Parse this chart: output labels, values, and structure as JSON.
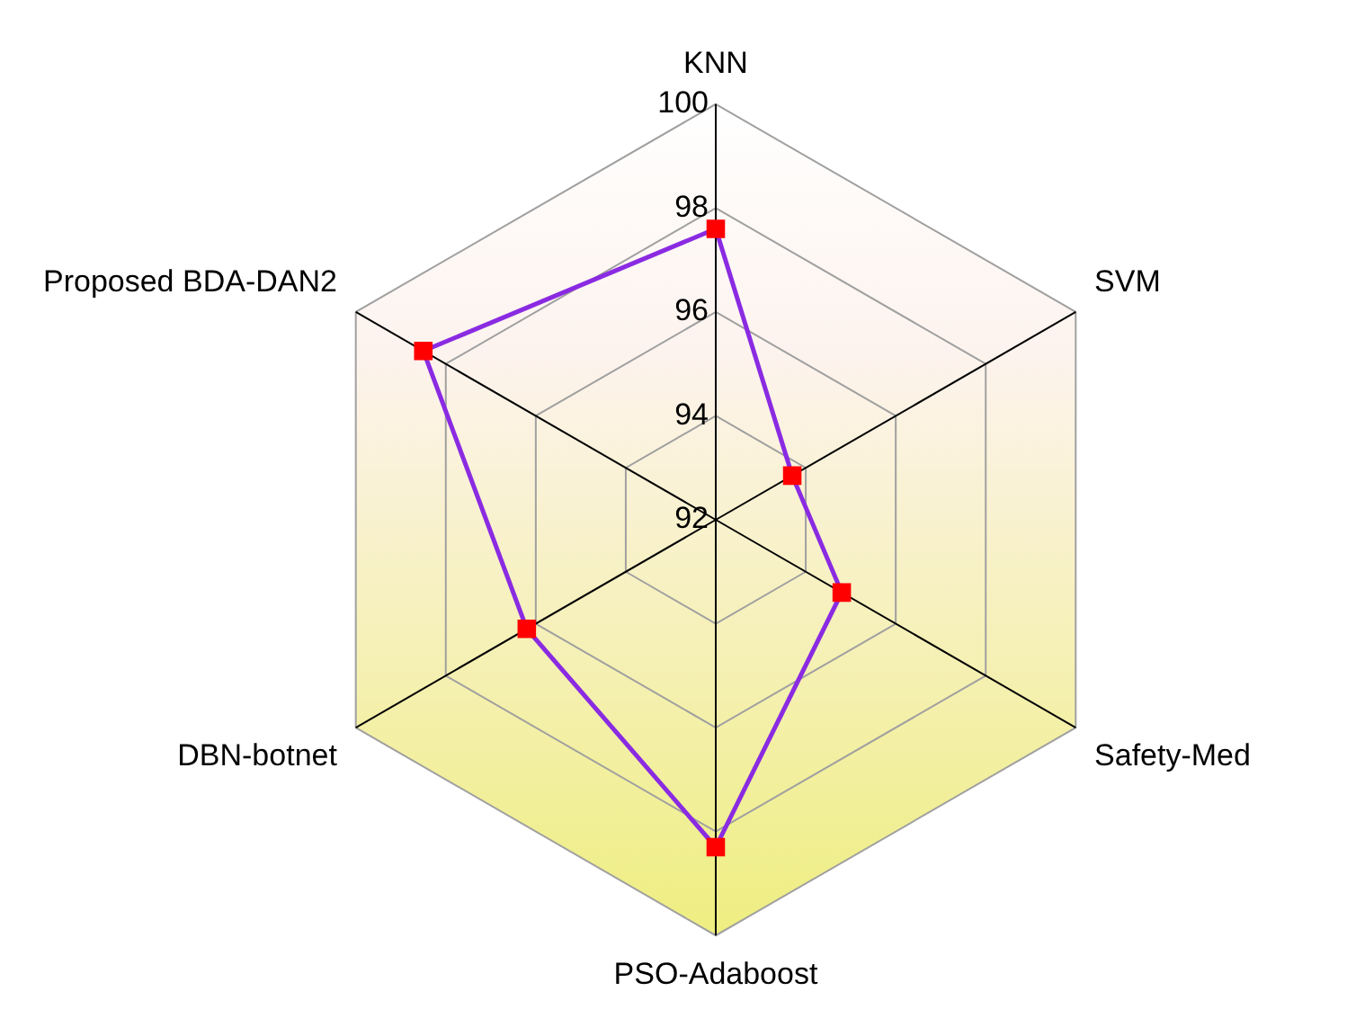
{
  "chart_data": {
    "type": "radar",
    "categories": [
      "KNN",
      "SVM",
      "Safety-Med",
      "PSO-Adaboost",
      "DBN-botnet",
      "Proposed BDA-DAN2"
    ],
    "series": [
      {
        "color": "#8a2be2",
        "values": [
          97.6,
          93.7,
          94.8,
          98.3,
          96.2,
          98.5
        ]
      }
    ],
    "ylim": [
      92,
      100
    ],
    "yticks": [
      92,
      94,
      96,
      98,
      100
    ],
    "marker": "square",
    "grid": true,
    "legend": false
  }
}
